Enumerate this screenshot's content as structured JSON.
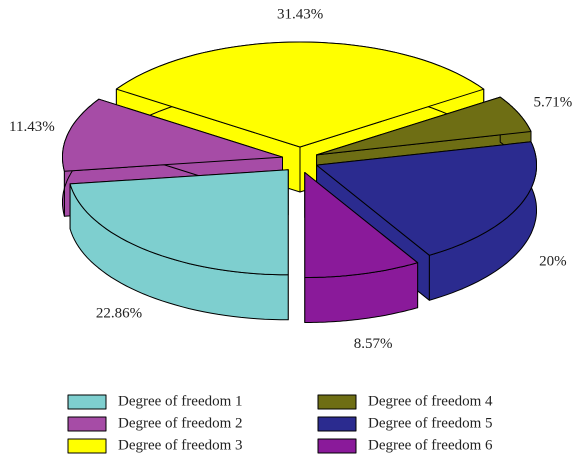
{
  "chart_data": {
    "type": "pie",
    "categories": [
      "Degree of freedom 1",
      "Degree of freedom 2",
      "Degree of freedom 3",
      "Degree of freedom 4",
      "Degree of freedom 5",
      "Degree of freedom 6"
    ],
    "values": [
      22.86,
      11.43,
      31.43,
      5.71,
      20,
      8.57
    ],
    "value_labels": [
      "22.86%",
      "11.43%",
      "31.43%",
      "5.71%",
      "20%",
      "8.57%"
    ],
    "colors": [
      "#7ecfcf",
      "#a64ca6",
      "#ffff00",
      "#6e6e14",
      "#2b2b8f",
      "#8a1a9a"
    ],
    "legend": "bottom"
  }
}
